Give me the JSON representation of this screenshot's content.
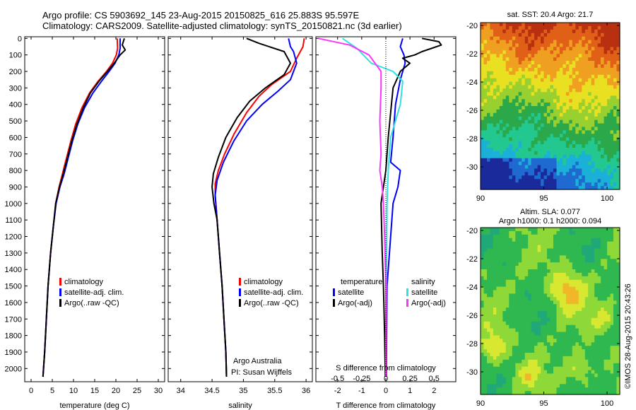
{
  "header": {
    "line1": "Argo profile: CS 5903692_145 23-Aug-2015 20150825_616 25.883S 95.597E",
    "line2": "Climatology: CARS2009. Satellite-adjusted climatology: synTS_20150821.nc (3d earlier)"
  },
  "sidebar_stamp": "©IMOS 28-Aug-2015 20:43:26",
  "colors": {
    "climatology": "#ff0000",
    "satellite": "#0000ff",
    "argo": "#000000",
    "sal_satellite": "#33e0e0",
    "sal_argo": "#ff33ff"
  },
  "chart_data": [
    {
      "type": "line",
      "id": "temperature-profile",
      "xlabel": "temperature (deg C)",
      "xlim": [
        -1.5,
        31.5
      ],
      "ylim": [
        2080,
        -10
      ],
      "xticks": [
        "0",
        "5",
        "10",
        "15",
        "20",
        "25",
        "30"
      ],
      "yticks": [
        "0",
        "100",
        "200",
        "300",
        "400",
        "500",
        "600",
        "700",
        "800",
        "900",
        "1000",
        "1100",
        "1200",
        "1300",
        "1400",
        "1500",
        "1600",
        "1700",
        "1800",
        "1900",
        "2000"
      ],
      "legend": [
        "climatology",
        "satellite-adj. clim.",
        "Argo(..raw -QC)"
      ],
      "series": [
        {
          "name": "climatology",
          "color": "#ff0000",
          "points": [
            [
              20.3,
              0
            ],
            [
              20.4,
              60
            ],
            [
              20.1,
              100
            ],
            [
              19.2,
              150
            ],
            [
              17.8,
              200
            ],
            [
              15.8,
              260
            ],
            [
              13.8,
              330
            ],
            [
              12.0,
              420
            ],
            [
              10.5,
              520
            ],
            [
              9.4,
              620
            ],
            [
              8.4,
              720
            ],
            [
              7.4,
              820
            ],
            [
              6.6,
              900
            ],
            [
              5.8,
              1000
            ],
            [
              5.2,
              1150
            ],
            [
              4.6,
              1300
            ],
            [
              4.0,
              1500
            ],
            [
              3.6,
              1700
            ],
            [
              3.2,
              1900
            ],
            [
              2.8,
              2050
            ]
          ]
        },
        {
          "name": "satellite-adj. clim.",
          "color": "#0000ff",
          "points": [
            [
              21.0,
              0
            ],
            [
              21.0,
              60
            ],
            [
              20.7,
              100
            ],
            [
              19.8,
              150
            ],
            [
              18.4,
              200
            ],
            [
              16.6,
              260
            ],
            [
              14.6,
              330
            ],
            [
              12.6,
              420
            ],
            [
              11.0,
              520
            ],
            [
              9.8,
              620
            ],
            [
              8.8,
              720
            ],
            [
              7.8,
              820
            ],
            [
              6.8,
              900
            ],
            [
              5.9,
              1000
            ],
            [
              5.2,
              1150
            ],
            [
              4.6,
              1300
            ],
            [
              4.0,
              1500
            ],
            [
              3.6,
              1700
            ],
            [
              3.2,
              1900
            ],
            [
              2.8,
              2050
            ]
          ]
        },
        {
          "name": "Argo(..raw -QC)",
          "color": "#000000",
          "points": [
            [
              22.0,
              0
            ],
            [
              21.5,
              40
            ],
            [
              22.2,
              70
            ],
            [
              21.0,
              100
            ],
            [
              19.6,
              150
            ],
            [
              18.0,
              200
            ],
            [
              16.0,
              260
            ],
            [
              14.0,
              330
            ],
            [
              12.3,
              420
            ],
            [
              10.8,
              520
            ],
            [
              9.6,
              620
            ],
            [
              8.6,
              720
            ],
            [
              7.6,
              820
            ],
            [
              6.7,
              900
            ],
            [
              5.8,
              1000
            ],
            [
              5.2,
              1150
            ],
            [
              4.6,
              1300
            ],
            [
              4.0,
              1500
            ],
            [
              3.6,
              1700
            ],
            [
              3.2,
              1900
            ],
            [
              2.8,
              2050
            ]
          ]
        }
      ]
    },
    {
      "type": "line",
      "id": "salinity-profile",
      "xlabel": "salinity",
      "xlim": [
        33.8,
        36.1
      ],
      "ylim": [
        2080,
        -10
      ],
      "xticks": [
        "34",
        "34.5",
        "35",
        "35.5",
        "36"
      ],
      "legend": [
        "climatology",
        "satellite-adj. clim.",
        "Argo(..raw -QC)"
      ],
      "annotations": [
        "Argo Australia",
        "PI: Susan Wijffels"
      ],
      "series": [
        {
          "name": "climatology",
          "color": "#ff0000",
          "points": [
            [
              35.97,
              0
            ],
            [
              35.95,
              50
            ],
            [
              35.85,
              120
            ],
            [
              35.75,
              200
            ],
            [
              35.45,
              280
            ],
            [
              35.25,
              350
            ],
            [
              35.05,
              450
            ],
            [
              34.85,
              580
            ],
            [
              34.7,
              700
            ],
            [
              34.6,
              800
            ],
            [
              34.55,
              880
            ],
            [
              34.55,
              950
            ],
            [
              34.58,
              1100
            ],
            [
              34.62,
              1300
            ],
            [
              34.66,
              1500
            ],
            [
              34.69,
              1700
            ],
            [
              34.72,
              1900
            ],
            [
              34.73,
              2050
            ]
          ]
        },
        {
          "name": "satellite-adj. clim.",
          "color": "#0000ff",
          "points": [
            [
              35.72,
              0
            ],
            [
              35.75,
              50
            ],
            [
              35.8,
              80
            ],
            [
              35.85,
              150
            ],
            [
              35.75,
              250
            ],
            [
              35.55,
              320
            ],
            [
              35.3,
              400
            ],
            [
              35.05,
              500
            ],
            [
              34.85,
              620
            ],
            [
              34.68,
              750
            ],
            [
              34.58,
              860
            ],
            [
              34.55,
              950
            ],
            [
              34.58,
              1100
            ],
            [
              34.62,
              1300
            ],
            [
              34.66,
              1500
            ],
            [
              34.69,
              1700
            ],
            [
              34.72,
              1900
            ],
            [
              34.73,
              2050
            ]
          ]
        },
        {
          "name": "Argo(..raw -QC)",
          "color": "#000000",
          "points": [
            [
              35.05,
              0
            ],
            [
              35.25,
              30
            ],
            [
              35.65,
              80
            ],
            [
              35.75,
              150
            ],
            [
              35.65,
              220
            ],
            [
              35.35,
              300
            ],
            [
              35.1,
              380
            ],
            [
              34.9,
              480
            ],
            [
              34.72,
              600
            ],
            [
              34.6,
              720
            ],
            [
              34.52,
              820
            ],
            [
              34.5,
              900
            ],
            [
              34.53,
              1000
            ],
            [
              34.58,
              1100
            ],
            [
              34.62,
              1300
            ],
            [
              34.66,
              1500
            ],
            [
              34.69,
              1700
            ],
            [
              34.72,
              1900
            ],
            [
              34.73,
              2050
            ]
          ]
        }
      ]
    },
    {
      "type": "line",
      "id": "difference-profile",
      "xlabel": "T difference from climatology",
      "x2label": "S difference from climatology",
      "xlim": [
        -2.9,
        2.9
      ],
      "ylim": [
        2080,
        -10
      ],
      "xticks": [
        "-2",
        "-1",
        "0",
        "1",
        "2"
      ],
      "x2ticks": [
        "-0.5",
        "-0.25",
        "0",
        "0.25",
        "0.5"
      ],
      "legend_groups": {
        "temperature": [
          "satellite",
          "Argo(-adj)"
        ],
        "salinity": [
          "satellite",
          "Argo(-adj)"
        ]
      },
      "series": [
        {
          "name": "temperature satellite",
          "color": "#0000ff",
          "points": [
            [
              0.7,
              0
            ],
            [
              0.6,
              50
            ],
            [
              0.75,
              100
            ],
            [
              0.8,
              150
            ],
            [
              0.6,
              250
            ],
            [
              0.4,
              400
            ],
            [
              0.3,
              600
            ],
            [
              0.2,
              750
            ],
            [
              0.6,
              800
            ],
            [
              0.5,
              900
            ],
            [
              0.3,
              1000
            ],
            [
              0.2,
              1200
            ],
            [
              0.05,
              1500
            ],
            [
              0.02,
              2050
            ]
          ]
        },
        {
          "name": "temperature Argo(-adj)",
          "color": "#000000",
          "points": [
            [
              1.5,
              0
            ],
            [
              2.2,
              20
            ],
            [
              2.3,
              40
            ],
            [
              1.5,
              80
            ],
            [
              1.2,
              100
            ],
            [
              0.7,
              120
            ],
            [
              1.0,
              150
            ],
            [
              0.6,
              200
            ],
            [
              0.3,
              300
            ],
            [
              0.1,
              600
            ],
            [
              0.0,
              800
            ],
            [
              -0.2,
              1000
            ],
            [
              -0.15,
              1300
            ],
            [
              -0.1,
              1500
            ],
            [
              -0.05,
              1800
            ],
            [
              -0.02,
              2050
            ]
          ]
        },
        {
          "name": "salinity satellite",
          "color": "#33e0e0",
          "points": [
            [
              -1.8,
              0
            ],
            [
              -1.2,
              60
            ],
            [
              -0.6,
              150
            ],
            [
              0.3,
              200
            ],
            [
              0.7,
              260
            ],
            [
              0.6,
              400
            ],
            [
              0.2,
              600
            ],
            [
              0.1,
              800
            ],
            [
              0.05,
              1000
            ],
            [
              0.02,
              1500
            ],
            [
              0.0,
              2050
            ]
          ]
        },
        {
          "name": "salinity Argo(-adj)",
          "color": "#ff33ff",
          "points": [
            [
              -2.8,
              0
            ],
            [
              -1.5,
              40
            ],
            [
              -0.7,
              100
            ],
            [
              -0.2,
              200
            ],
            [
              -0.2,
              300
            ],
            [
              -0.25,
              500
            ],
            [
              -0.2,
              700
            ],
            [
              -0.25,
              800
            ],
            [
              -0.15,
              900
            ],
            [
              -0.1,
              1000
            ],
            [
              -0.05,
              1200
            ],
            [
              0.0,
              1500
            ],
            [
              0.0,
              2050
            ]
          ]
        }
      ]
    },
    {
      "type": "heatmap",
      "id": "sst-map",
      "title": "sat. SST: 20.4  Argo: 21.7",
      "xticks": [
        "90",
        "95",
        "100"
      ],
      "yticks": [
        "-20",
        "-22",
        "-24",
        "-26",
        "-28",
        "-30"
      ],
      "xlim": [
        90,
        101
      ],
      "ylim": [
        -31.6,
        -19.8
      ],
      "colormap": [
        "#1a2a9a",
        "#1e6ad0",
        "#1ab0d8",
        "#22c890",
        "#2aa84a",
        "#98d030",
        "#e8e020",
        "#f0a020",
        "#e06018",
        "#b83010"
      ]
    },
    {
      "type": "heatmap",
      "id": "sla-map",
      "title": "Altim. SLA: 0.077",
      "subtitle": "Argo h1000: 0.1  h2000: 0.094",
      "xticks": [
        "90",
        "95",
        "100"
      ],
      "yticks": [
        "-20",
        "-22",
        "-24",
        "-26",
        "-28",
        "-30"
      ],
      "xlim": [
        90,
        101
      ],
      "ylim": [
        -31.6,
        -19.8
      ],
      "colormap": [
        "#20a878",
        "#30b850",
        "#8ed838",
        "#d8e830",
        "#f0b828"
      ]
    }
  ]
}
